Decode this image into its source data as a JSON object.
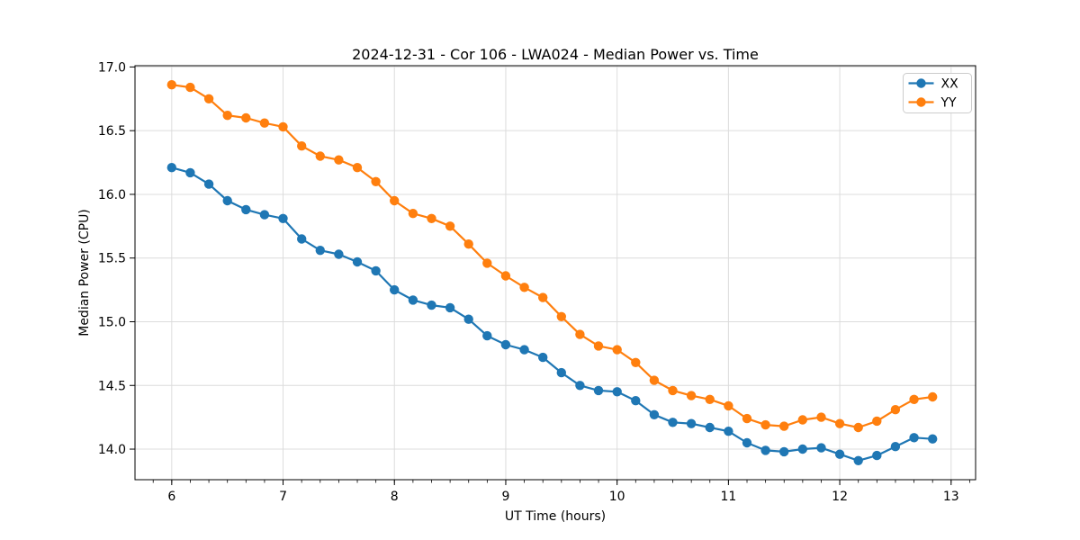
{
  "figure": {
    "title": "2024-12-31 - Cor 106 - LWA024 - Median Power vs. Time",
    "xlabel": "UT Time (hours)",
    "ylabel": "Median Power (CPU)"
  },
  "legend": {
    "position": "upper-right",
    "entries": [
      "XX",
      "YY"
    ]
  },
  "colors": {
    "xx_series": "#1f77b4",
    "yy_series": "#ff7f0e",
    "grid": "#dcdcdc",
    "axis": "#000000",
    "legend_border": "#cccccc",
    "background": "#ffffff"
  },
  "chart_data": {
    "type": "line",
    "title": "2024-12-31 - Cor 106 - LWA024 - Median Power vs. Time",
    "xlabel": "UT Time (hours)",
    "ylabel": "Median Power (CPU)",
    "xlim": [
      5.67,
      13.22
    ],
    "ylim": [
      13.76,
      17.01
    ],
    "xticks": [
      6,
      7,
      8,
      9,
      10,
      11,
      12,
      13
    ],
    "yticks": [
      14.0,
      14.5,
      15.0,
      15.5,
      16.0,
      16.5,
      17.0
    ],
    "x_minor_interval": 0.16667,
    "grid": true,
    "legend_position": "upper right",
    "marker": "circle",
    "x": [
      6,
      6.1667,
      6.3333,
      6.5,
      6.6667,
      6.8333,
      7,
      7.1667,
      7.3333,
      7.5,
      7.6667,
      7.8333,
      8,
      8.1667,
      8.3333,
      8.5,
      8.6667,
      8.8333,
      9,
      9.1667,
      9.3333,
      9.5,
      9.6667,
      9.8333,
      10,
      10.1667,
      10.3333,
      10.5,
      10.6667,
      10.8333,
      11,
      11.1667,
      11.3333,
      11.5,
      11.6667,
      11.8333,
      12,
      12.1667,
      12.3333,
      12.5,
      12.6667,
      12.8333
    ],
    "series": [
      {
        "name": "XX",
        "color": "#1f77b4",
        "values": [
          16.21,
          16.17,
          16.08,
          15.95,
          15.88,
          15.84,
          15.81,
          15.65,
          15.56,
          15.53,
          15.47,
          15.4,
          15.25,
          15.17,
          15.13,
          15.11,
          15.02,
          14.89,
          14.82,
          14.78,
          14.72,
          14.6,
          14.5,
          14.46,
          14.45,
          14.38,
          14.27,
          14.21,
          14.2,
          14.17,
          14.14,
          14.05,
          13.99,
          13.98,
          14.0,
          14.01,
          13.96,
          13.91,
          13.95,
          14.02,
          14.09,
          14.08
        ]
      },
      {
        "name": "YY",
        "color": "#ff7f0e",
        "values": [
          16.86,
          16.84,
          16.75,
          16.62,
          16.6,
          16.56,
          16.53,
          16.38,
          16.3,
          16.27,
          16.21,
          16.1,
          15.95,
          15.85,
          15.81,
          15.75,
          15.61,
          15.46,
          15.36,
          15.27,
          15.19,
          15.04,
          14.9,
          14.81,
          14.78,
          14.68,
          14.54,
          14.46,
          14.42,
          14.39,
          14.34,
          14.24,
          14.19,
          14.18,
          14.23,
          14.25,
          14.2,
          14.17,
          14.22,
          14.31,
          14.39,
          14.41
        ]
      }
    ]
  }
}
